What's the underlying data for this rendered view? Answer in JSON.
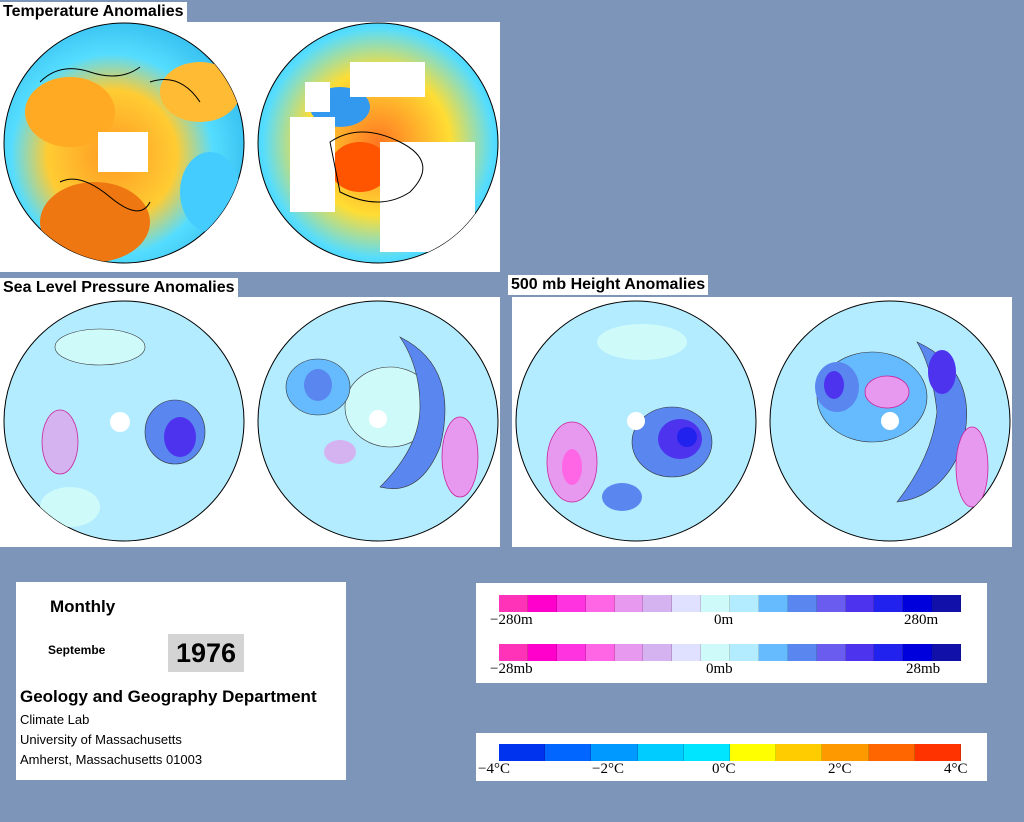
{
  "titles": {
    "temperature": "Temperature Anomalies",
    "slp": "Sea Level Pressure Anomalies",
    "height500": "500 mb Height Anomalies"
  },
  "info": {
    "period": "Monthly",
    "month": "Septembe",
    "year": "1976",
    "department": "Geology and Geography Department",
    "lab": "Climate Lab",
    "university": "University of Massachusetts",
    "address": "Amherst, Massachusetts 01003"
  },
  "legend_height": {
    "colors": [
      "#ff33b8",
      "#ff00cc",
      "#ff33e0",
      "#ff66e6",
      "#e699ee",
      "#d4b3f0",
      "#e0e0ff",
      "#cffafa",
      "#b3ecff",
      "#66bbff",
      "#5a86f0",
      "#6b5cf0",
      "#4d33ee",
      "#2222ee",
      "#0000dd",
      "#1111aa"
    ],
    "labels": [
      "−280m",
      "0m",
      "280m"
    ]
  },
  "legend_pressure": {
    "colors": [
      "#ff33b8",
      "#ff00cc",
      "#ff33e0",
      "#ff66e6",
      "#e699ee",
      "#d4b3f0",
      "#e0e0ff",
      "#cffafa",
      "#b3ecff",
      "#66bbff",
      "#5a86f0",
      "#6b5cf0",
      "#4d33ee",
      "#2222ee",
      "#0000dd",
      "#1111aa"
    ],
    "labels": [
      "−28mb",
      "0mb",
      "28mb"
    ]
  },
  "legend_temperature": {
    "colors": [
      "#0033ee",
      "#0066ff",
      "#0099ff",
      "#00ccff",
      "#00e5ff",
      "#ffff00",
      "#ffcc00",
      "#ff9900",
      "#ff6600",
      "#ff3300"
    ],
    "labels": [
      "−4°C",
      "−2°C",
      "0°C",
      "2°C",
      "4°C"
    ]
  }
}
